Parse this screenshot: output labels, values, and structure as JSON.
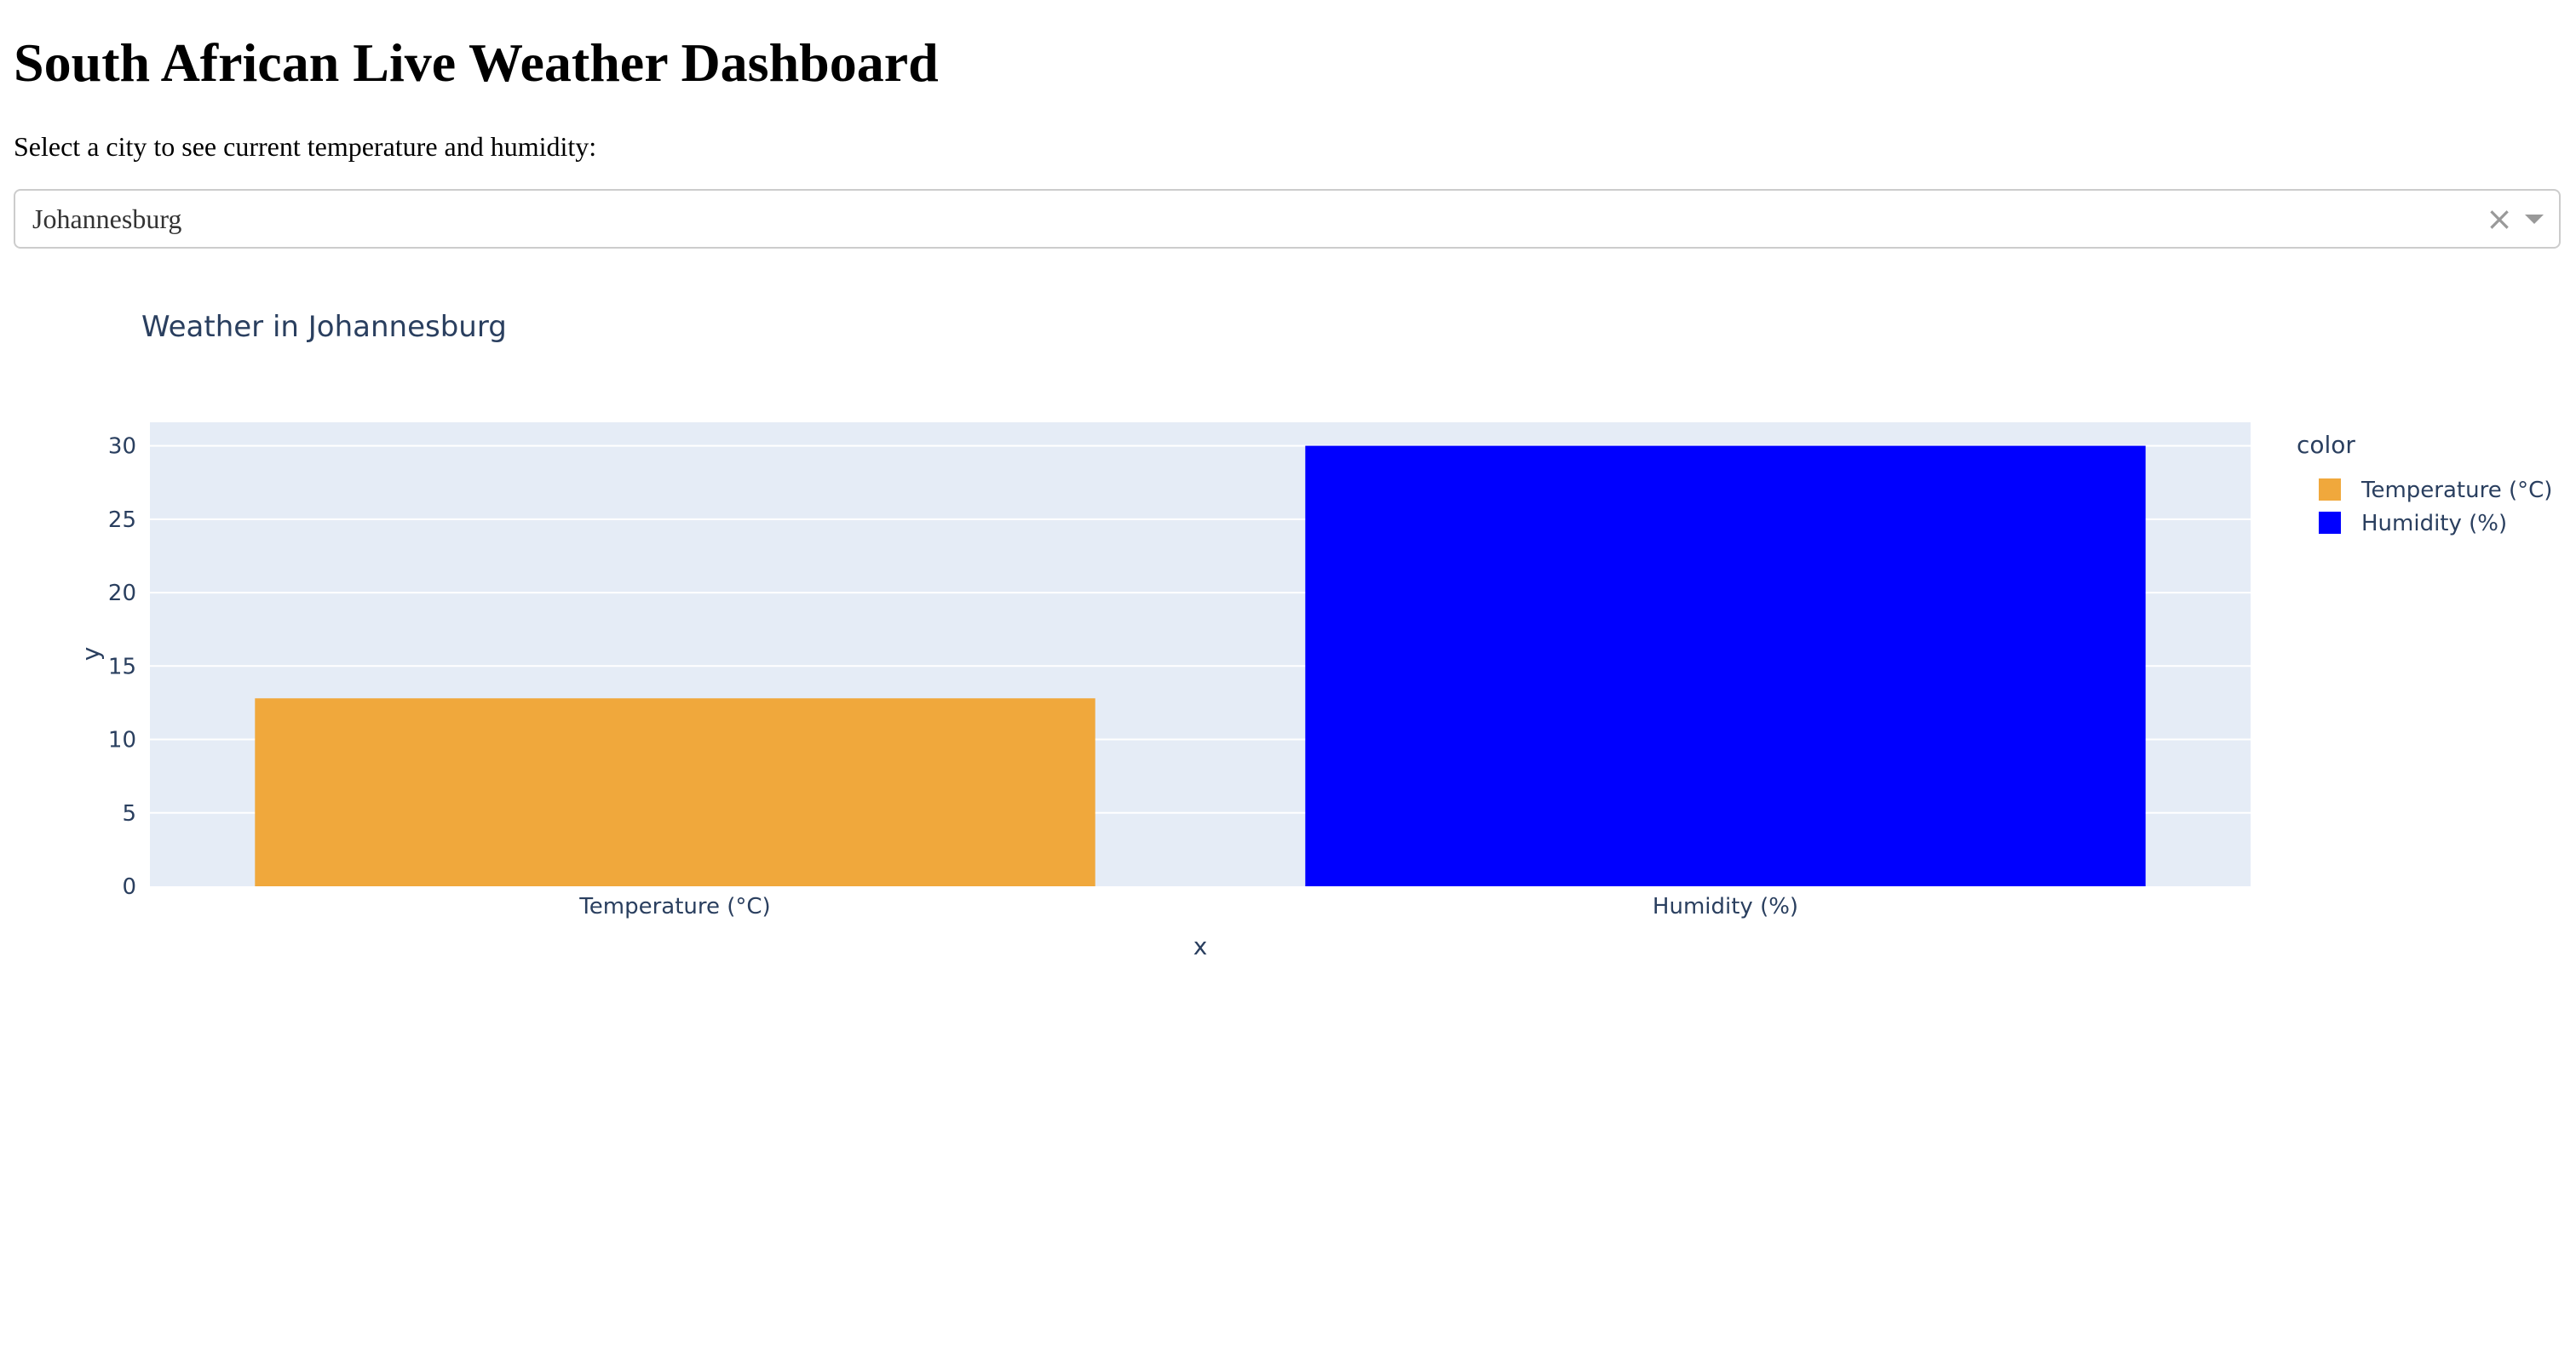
{
  "page": {
    "title": "South African Live Weather Dashboard",
    "instructions": "Select a city to see current temperature and humidity:"
  },
  "city_select": {
    "selected": "Johannesburg",
    "clear_icon": "close-icon",
    "arrow_icon": "chevron-down-icon"
  },
  "chart_data": {
    "type": "bar",
    "title": "Weather in Johannesburg",
    "xlabel": "x",
    "ylabel": "y",
    "categories": [
      "Temperature (°C)",
      "Humidity (%)"
    ],
    "values": [
      12.8,
      30
    ],
    "colors": [
      "#F0A83C",
      "#0000FF"
    ],
    "ylim": [
      0,
      31.6
    ],
    "yticks": [
      0,
      5,
      10,
      15,
      20,
      25,
      30
    ],
    "grid": true,
    "legend": {
      "title": "color",
      "position": "top-right",
      "items": [
        {
          "label": "Temperature (°C)",
          "color": "#F0A83C"
        },
        {
          "label": "Humidity (%)",
          "color": "#0000FF"
        }
      ]
    },
    "plot_bg": "#E5ECF6",
    "text_color": "#2A3F5F"
  }
}
